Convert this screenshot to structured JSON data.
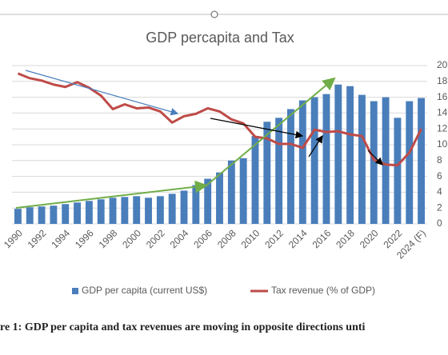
{
  "chart_data": {
    "type": "bar_line",
    "title": "GDP percapita and Tax",
    "caption": "re 1: GDP per capita and tax revenues are moving in opposite directions unti",
    "categories": [
      "1990",
      null,
      "1992",
      null,
      "1994",
      null,
      "1996",
      null,
      "1998",
      null,
      "2000",
      null,
      "2002",
      null,
      "2004",
      null,
      "2006",
      null,
      "2008",
      null,
      "2010",
      null,
      "2012",
      null,
      "2014",
      null,
      "2016",
      null,
      "2018",
      null,
      "2020",
      null,
      "2022",
      null,
      "2024 (F)"
    ],
    "series": [
      {
        "name": "GDP per capita (current US$)",
        "color": "#4a7ebb",
        "kind": "bar",
        "values": [
          1.9,
          2.1,
          2.2,
          2.3,
          2.5,
          2.7,
          2.9,
          3.1,
          3.3,
          3.4,
          3.5,
          3.3,
          3.5,
          3.8,
          4.2,
          4.9,
          5.7,
          6.5,
          8.0,
          8.3,
          11.1,
          12.9,
          13.4,
          14.5,
          15.6,
          16.0,
          16.4,
          17.6,
          17.4,
          16.3,
          15.5,
          16.0,
          13.4,
          15.5,
          15.9
        ]
      },
      {
        "name": "Tax revenue (% of GDP)",
        "color": "#be4b48",
        "kind": "line",
        "axis": "y2",
        "values": [
          19.0,
          18.4,
          18.1,
          17.6,
          17.3,
          17.9,
          17.2,
          16.2,
          14.5,
          15.1,
          14.6,
          14.7,
          14.2,
          12.8,
          13.6,
          13.9,
          14.6,
          14.2,
          13.2,
          12.7,
          11.0,
          10.8,
          10.1,
          10.1,
          9.6,
          11.9,
          11.6,
          11.7,
          11.3,
          11.1,
          8.1,
          7.5,
          7.4,
          9.0,
          12.0
        ]
      }
    ],
    "ylim": [
      0,
      20
    ],
    "y2lim": [
      0,
      20
    ],
    "y2ticks": [
      0,
      2,
      4,
      6,
      8,
      10,
      12,
      14,
      16,
      18,
      20
    ],
    "grid": true
  }
}
